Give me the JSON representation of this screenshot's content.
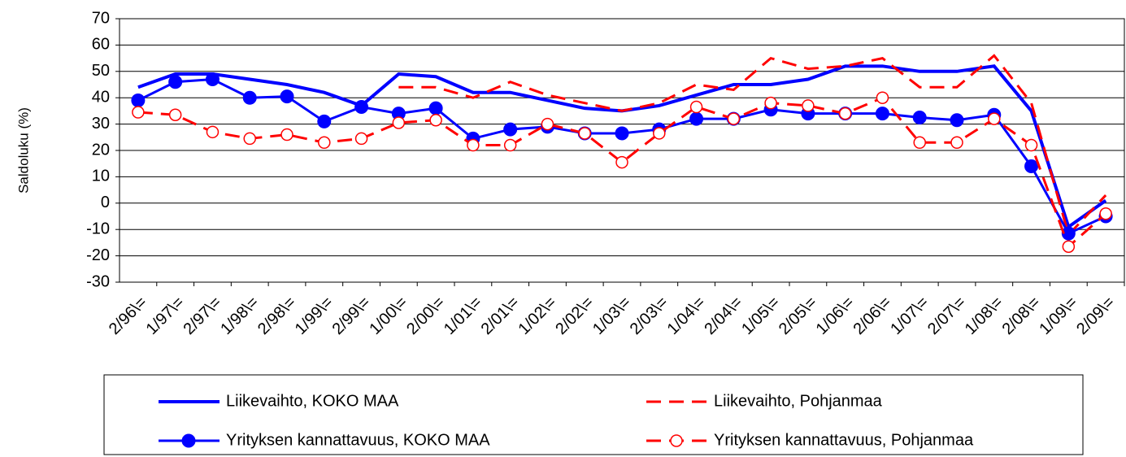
{
  "chart_data": {
    "type": "line",
    "y_label": "Saldoluku (%)",
    "categories": [
      "2/96\\=",
      "1/97\\=",
      "2/97\\=",
      "1/98\\=",
      "2/98\\=",
      "1/99\\=",
      "2/99\\=",
      "1/00\\=",
      "2/00\\=",
      "1/01\\=",
      "2/01\\=",
      "1/02\\=",
      "2/02\\=",
      "1/03\\=",
      "2/03\\=",
      "1/04\\=",
      "2/04\\=",
      "1/05\\=",
      "2/05\\=",
      "1/06\\=",
      "2/06\\=",
      "1/07\\=",
      "2/07\\=",
      "1/08\\=",
      "2/08\\=",
      "1/09\\=",
      "2/09\\="
    ],
    "series": [
      {
        "name": "Liikevaihto, KOKO MAA",
        "color": "#0000ff",
        "dashed": false,
        "marker": "none",
        "width": 4,
        "values": [
          44,
          49,
          49,
          47,
          45,
          42,
          37,
          49,
          48,
          42,
          42,
          39,
          36,
          35,
          37,
          41,
          45,
          45,
          47,
          52,
          52,
          50,
          50,
          52,
          35,
          -9,
          1
        ]
      },
      {
        "name": "Liikevaihto, Pohjanmaa",
        "color": "#ff0000",
        "dashed": true,
        "marker": "none",
        "width": 3,
        "values": [
          null,
          null,
          null,
          null,
          null,
          null,
          null,
          44,
          44,
          40,
          46,
          41,
          38,
          35,
          38,
          45,
          43,
          55,
          51,
          52,
          55,
          44,
          44,
          56,
          38,
          -12,
          3
        ]
      },
      {
        "name": "Yrityksen kannattavuus, KOKO MAA",
        "color": "#0000ff",
        "dashed": false,
        "marker": "filled",
        "width": 3,
        "values": [
          39,
          46,
          47,
          40,
          40.5,
          31,
          36.5,
          34,
          36,
          24.5,
          28,
          29,
          26.5,
          26.5,
          28,
          32,
          32,
          35.5,
          34,
          34,
          34,
          32.5,
          31.5,
          33.5,
          14,
          -11.5,
          -5
        ]
      },
      {
        "name": "Yrityksen kannattavuus, Pohjanmaa",
        "color": "#ff0000",
        "dashed": true,
        "marker": "open",
        "width": 3,
        "values": [
          34.5,
          33.5,
          27,
          24.5,
          26,
          23,
          24.5,
          30.5,
          31.5,
          22,
          22,
          30,
          26.5,
          15.5,
          26.5,
          36.5,
          32,
          38,
          37,
          34,
          40,
          23,
          23,
          32,
          22,
          -16.5,
          -4
        ]
      }
    ],
    "ylim": [
      -30,
      70
    ],
    "yticks": [
      -30,
      -20,
      -10,
      0,
      10,
      20,
      30,
      40,
      50,
      60,
      70
    ],
    "grid": true
  }
}
